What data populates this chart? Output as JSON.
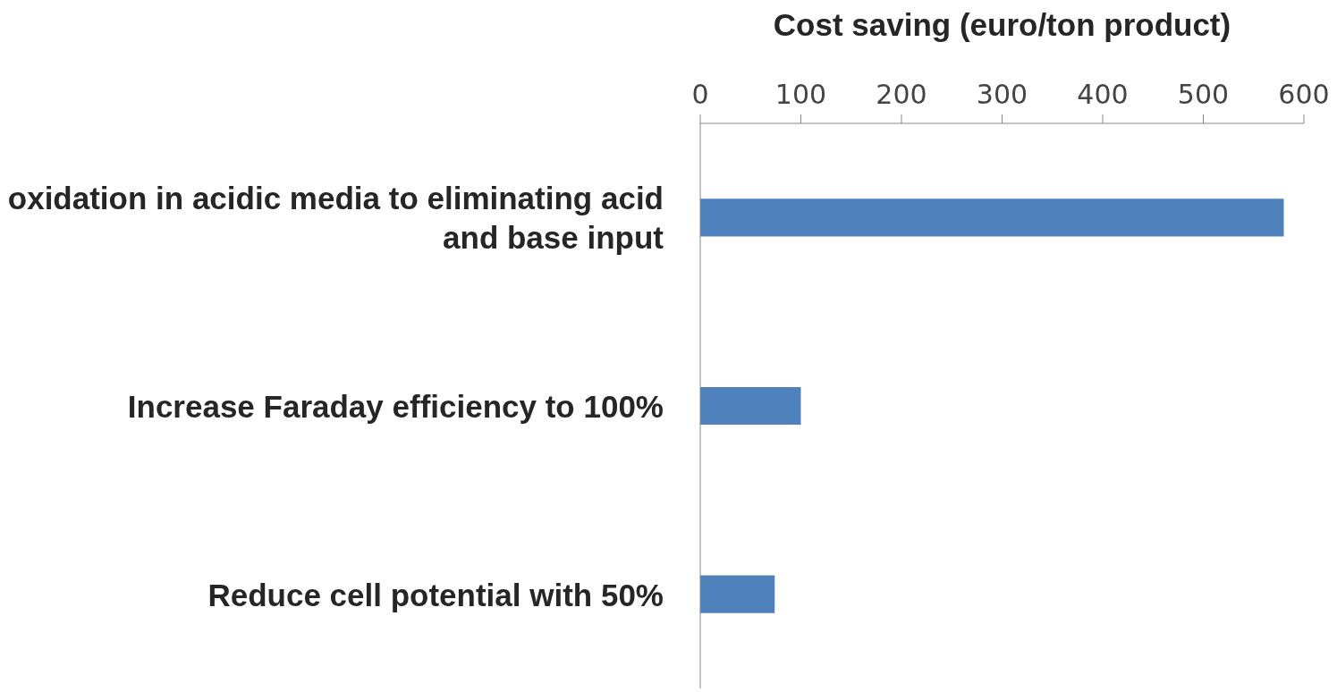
{
  "chart_data": {
    "type": "bar",
    "orientation": "horizontal",
    "xlabel": "Cost saving (euro/ton product)",
    "categories": [
      "oxidation in acidic media to eliminating acid and base input",
      "Increase Faraday efficiency to 100%",
      "Reduce cell potential with 50%"
    ],
    "values": [
      580,
      100,
      74
    ],
    "color": "#4f81bd",
    "xlim": [
      0,
      600
    ],
    "xticks": [
      0,
      100,
      200,
      300,
      400,
      500,
      600
    ],
    "grid": false,
    "legend": false
  }
}
